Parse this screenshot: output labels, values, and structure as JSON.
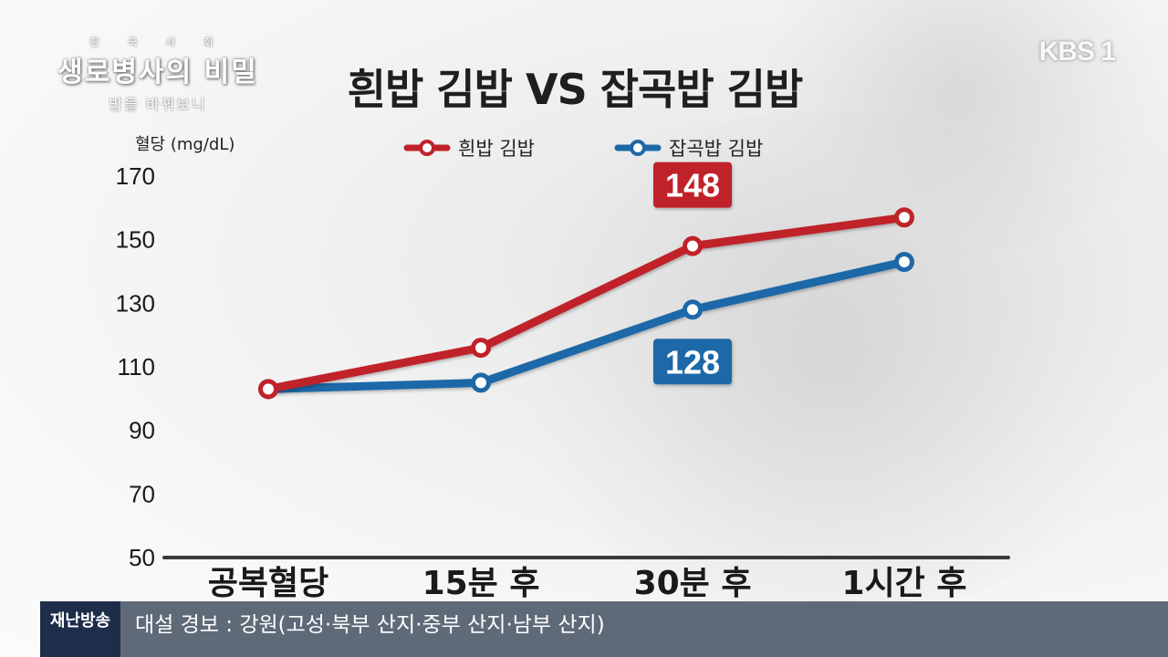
{
  "branding": {
    "program_sub": "한 국 사 회",
    "program_name": "생로병사의 비밀",
    "episode_caption": "밥을 바꿔보니",
    "channel_logo": "KBS 1"
  },
  "ticker": {
    "label": "재난방송",
    "text": "대설 경보 : 강원(고성·북부 산지·중부 산지·남부 산지)"
  },
  "colors": {
    "red_series": "#c0222a",
    "blue_series": "#1f68a8",
    "axis": "#3a3a3a"
  },
  "chart_data": {
    "type": "line",
    "title": "흰밥 김밥 VS 잡곡밥 김밥",
    "ylabel": "혈당 (mg/dL)",
    "xlabel": "",
    "categories": [
      "공복혈당",
      "15분 후",
      "30분 후",
      "1시간 후"
    ],
    "yticks": [
      170,
      150,
      130,
      110,
      90,
      70,
      50
    ],
    "ylim": [
      50,
      170
    ],
    "grid": false,
    "legend_position": "top-center",
    "series": [
      {
        "name": "흰밥 김밥",
        "color": "#c0222a",
        "values": [
          103,
          116,
          148,
          157
        ]
      },
      {
        "name": "잡곡밥 김밥",
        "color": "#1f68a8",
        "values": [
          103,
          105,
          128,
          143
        ]
      }
    ],
    "annotations": [
      {
        "series": 0,
        "index": 2,
        "label": "148",
        "position": "above"
      },
      {
        "series": 1,
        "index": 2,
        "label": "128",
        "position": "below"
      }
    ]
  }
}
